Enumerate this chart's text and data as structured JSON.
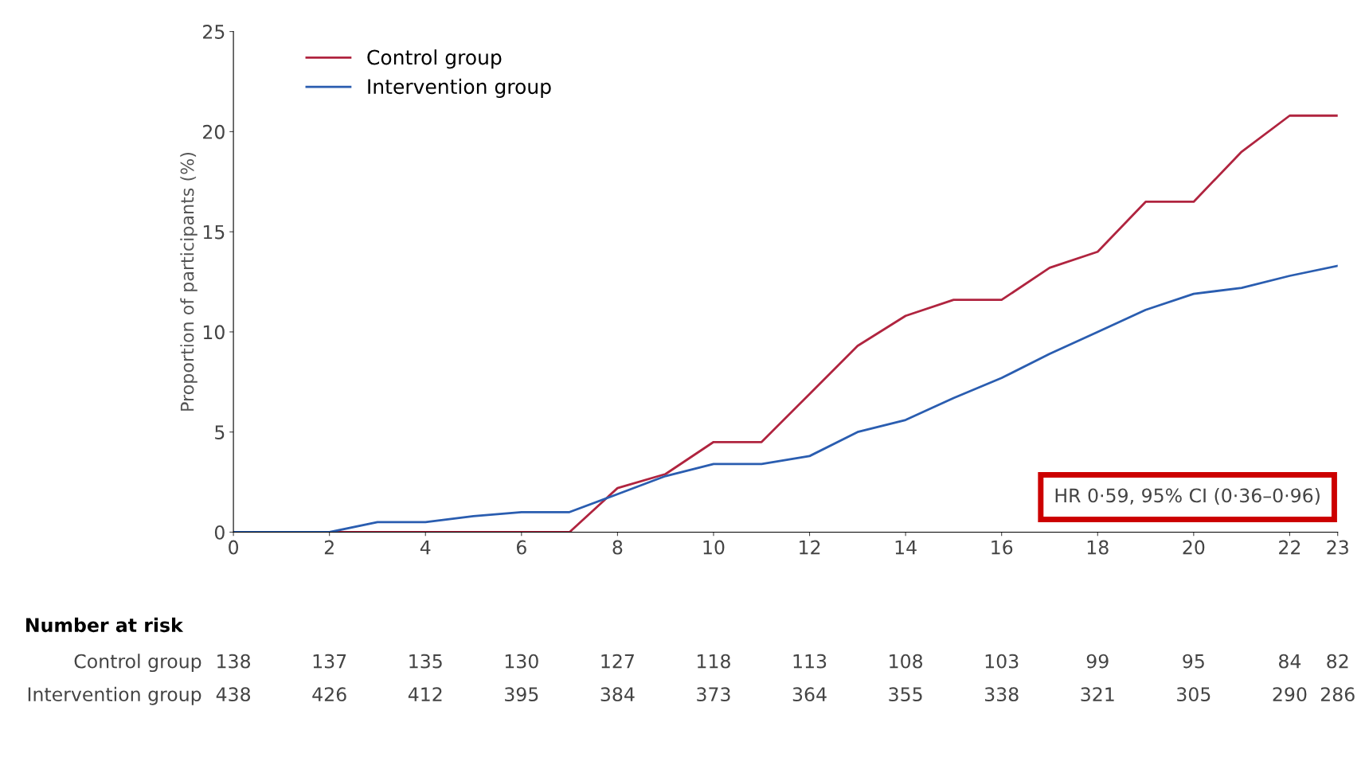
{
  "chart_data": {
    "type": "line",
    "ylabel": "Proportion of participants (%)",
    "series": [
      {
        "name": "Control group",
        "color": "#b0243f",
        "x": [
          0,
          7,
          8,
          9,
          10,
          11,
          12,
          13,
          14,
          15,
          16,
          17,
          18,
          19,
          20,
          21,
          22,
          23
        ],
        "values": [
          0,
          0,
          2.2,
          2.9,
          4.5,
          4.5,
          6.9,
          9.3,
          10.8,
          11.6,
          11.6,
          13.2,
          14.0,
          16.5,
          16.5,
          19.0,
          20.8,
          20.8
        ]
      },
      {
        "name": "Intervention group",
        "color": "#2a5db0",
        "x": [
          0,
          2,
          3,
          4,
          5,
          6,
          7,
          8,
          9,
          10,
          11,
          12,
          13,
          14,
          15,
          16,
          17,
          18,
          19,
          20,
          21,
          22,
          23
        ],
        "values": [
          0,
          0,
          0.5,
          0.5,
          0.8,
          1.0,
          1.0,
          1.9,
          2.8,
          3.4,
          3.4,
          3.8,
          5.0,
          5.6,
          6.7,
          7.7,
          8.9,
          10.0,
          11.1,
          11.9,
          12.2,
          12.8,
          13.3
        ]
      }
    ],
    "xlim": [
      0,
      23
    ],
    "xticks": [
      0,
      2,
      4,
      6,
      8,
      10,
      12,
      14,
      16,
      18,
      20,
      22,
      23
    ],
    "ylim": [
      0,
      25
    ],
    "yticks": [
      0,
      5,
      10,
      15,
      20,
      25
    ],
    "grid": false,
    "legend": "top left",
    "marker": "none",
    "line_style": "solid",
    "annotations": [
      "HR 0·59, 95% CI (0·36–0·96)",
      "Number at risk",
      "Control group",
      "Intervention group",
      "138",
      "137",
      "135",
      "130",
      "127",
      "118",
      "113",
      "108",
      "103",
      "99",
      "95",
      "84",
      "82",
      "438",
      "426",
      "412",
      "395",
      "384",
      "373",
      "364",
      "355",
      "338",
      "321",
      "305",
      "290",
      "286"
    ]
  }
}
